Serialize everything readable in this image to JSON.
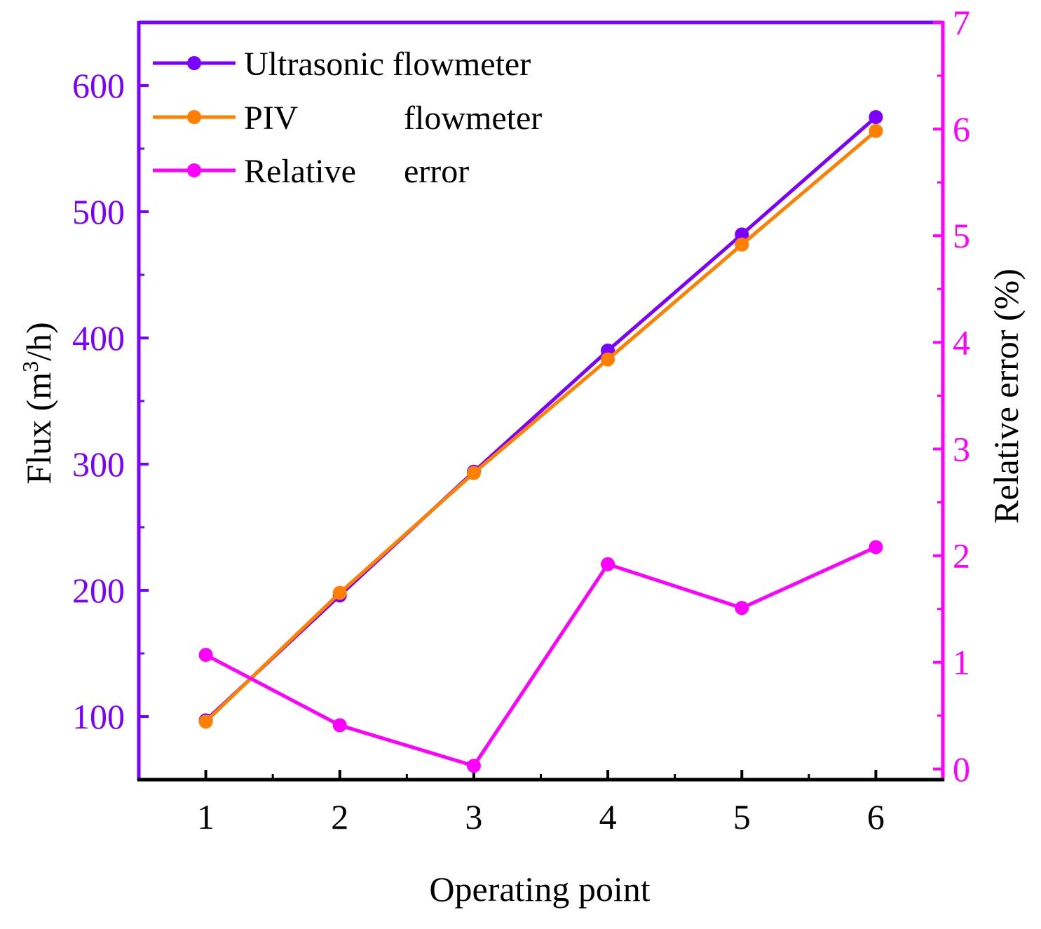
{
  "chart_data": {
    "type": "line",
    "title": "",
    "xlabel": "Operating point",
    "ylabel": {
      "prefix": "Flux (m",
      "superscript": "3",
      "suffix": "/h)"
    },
    "ylabel_right": "Relative error (%)",
    "x": [
      1,
      2,
      3,
      4,
      5,
      6
    ],
    "xlim": [
      0.5,
      6.5
    ],
    "ylim": [
      50,
      650
    ],
    "ylim_right": [
      -0.1,
      7
    ],
    "x_ticks": [
      "1",
      "2",
      "3",
      "4",
      "5",
      "6"
    ],
    "y_ticks": [
      "100",
      "200",
      "300",
      "400",
      "500",
      "600"
    ],
    "y_ticks_right": [
      "0",
      "1",
      "2",
      "3",
      "4",
      "5",
      "6",
      "7"
    ],
    "grid": false,
    "legend_position": "top-left",
    "series": [
      {
        "name": "Ultrasonic flowmeter",
        "axis": "left",
        "color": "#7b00ff",
        "values": [
          97,
          196,
          294,
          390,
          482,
          575
        ]
      },
      {
        "name": "PIV flowmeter",
        "axis": "left",
        "color": "#ff8000",
        "values": [
          96,
          198,
          293,
          383,
          474,
          564
        ]
      },
      {
        "name": "Relative error",
        "axis": "right",
        "color": "#ff00ff",
        "values": [
          1.07,
          0.41,
          0.03,
          1.92,
          1.51,
          2.08
        ]
      }
    ],
    "legend_labels": [
      {
        "first": "Ultrasonic flowmeter",
        "second": ""
      },
      {
        "first": "PIV",
        "second": "flowmeter"
      },
      {
        "first": "Relative",
        "second": "error"
      }
    ],
    "colors": {
      "left_axis": "#7b00ff",
      "right_axis": "#ff00ff",
      "bottom_axis": "#000000"
    }
  }
}
